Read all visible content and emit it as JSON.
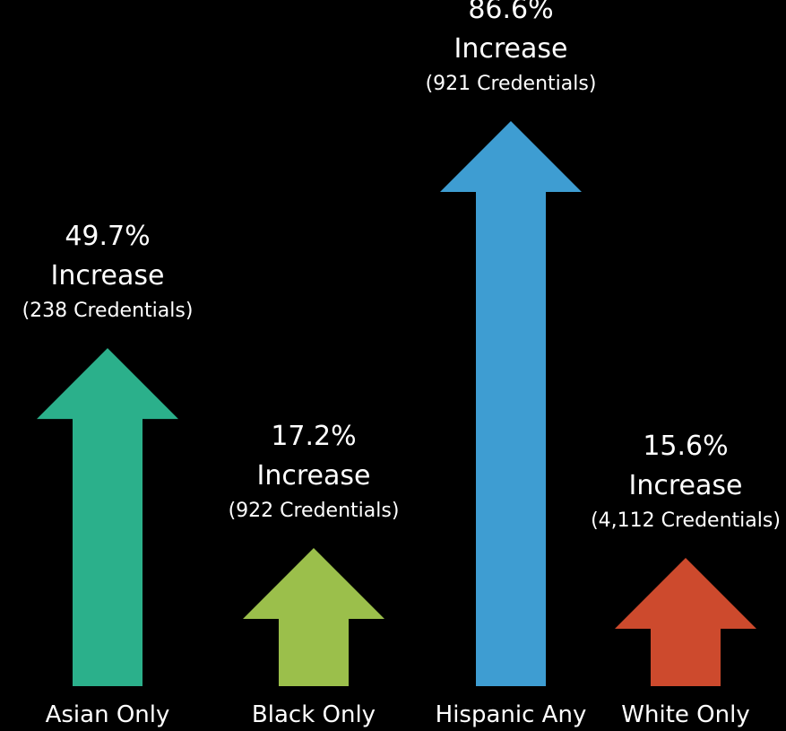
{
  "chart_data": {
    "type": "bar",
    "categories": [
      "Asian Only",
      "Black Only",
      "Hispanic Any",
      "White Only"
    ],
    "values": [
      49.7,
      17.2,
      86.6,
      15.6
    ],
    "value_labels": [
      "49.7%",
      "17.2%",
      "86.6%",
      "15.6%"
    ],
    "change_labels": [
      "Increase",
      "Increase",
      "Increase",
      "Increase"
    ],
    "credential_labels": [
      "(238 Credentials)",
      "(922 Credentials)",
      "(921 Credentials)",
      "(4,112 Credentials)"
    ],
    "colors": [
      "#2bb08b",
      "#9bbf4b",
      "#3e9dd2",
      "#cd4a2d"
    ],
    "title": "",
    "xlabel": "",
    "ylabel": "",
    "grid": false,
    "legend": "none"
  }
}
